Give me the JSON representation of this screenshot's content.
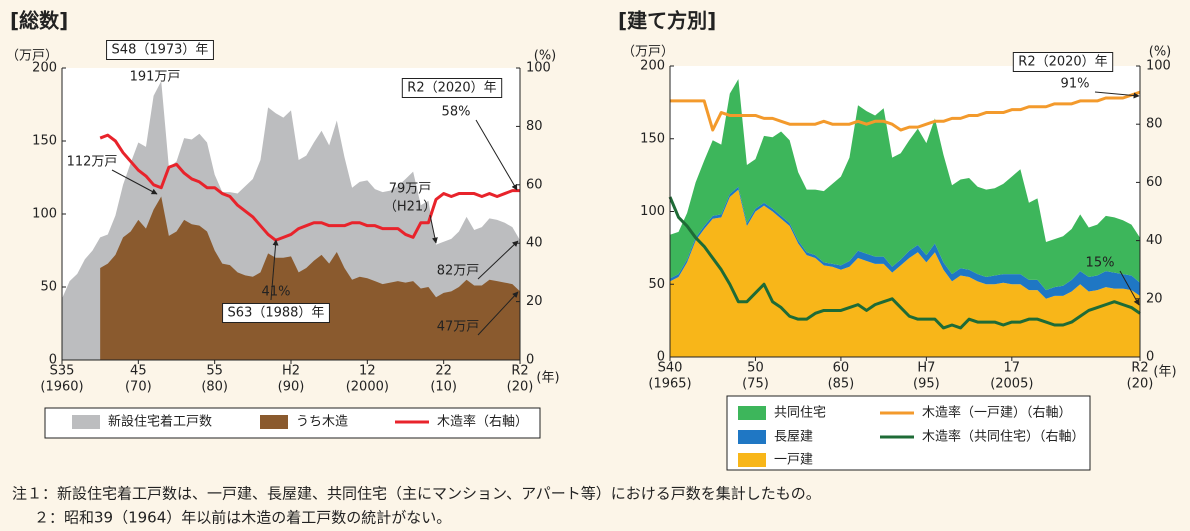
{
  "chart_data": [
    {
      "type": "combo",
      "title": "[総数]",
      "y_unit": "（万戸）",
      "y2_unit": "(%)",
      "x_unit": "(年)",
      "xlim": [
        1960,
        2020
      ],
      "ylim": [
        0,
        200
      ],
      "y2lim": [
        0,
        100
      ],
      "xticks": [
        {
          "value": 1960,
          "label": "S35",
          "sublabel": "(1960)"
        },
        {
          "value": 1970,
          "label": "45",
          "sublabel": "(70)"
        },
        {
          "value": 1980,
          "label": "55",
          "sublabel": "(80)"
        },
        {
          "value": 1990,
          "label": "H2",
          "sublabel": "(90)"
        },
        {
          "value": 2000,
          "label": "12",
          "sublabel": "(2000)"
        },
        {
          "value": 2010,
          "label": "22",
          "sublabel": "(10)"
        },
        {
          "value": 2020,
          "label": "R2",
          "sublabel": "(20)"
        }
      ],
      "yticks": [
        0,
        50,
        100,
        150,
        200
      ],
      "y2ticks": [
        0,
        20,
        40,
        60,
        80,
        100
      ],
      "x": [
        1960,
        1961,
        1962,
        1963,
        1964,
        1965,
        1966,
        1967,
        1968,
        1969,
        1970,
        1971,
        1972,
        1973,
        1974,
        1975,
        1976,
        1977,
        1978,
        1979,
        1980,
        1981,
        1982,
        1983,
        1984,
        1985,
        1986,
        1987,
        1988,
        1989,
        1990,
        1991,
        1992,
        1993,
        1994,
        1995,
        1996,
        1997,
        1998,
        1999,
        2000,
        2001,
        2002,
        2003,
        2004,
        2005,
        2006,
        2007,
        2008,
        2009,
        2010,
        2011,
        2012,
        2013,
        2014,
        2015,
        2016,
        2017,
        2018,
        2019,
        2020
      ],
      "series": [
        {
          "name": "新設住宅着工戸数",
          "kind": "area",
          "color": "#bcbdbf",
          "values": [
            42,
            54,
            59,
            69,
            75,
            84,
            86,
            99,
            120,
            135,
            149,
            146,
            181,
            191,
            132,
            136,
            152,
            151,
            155,
            149,
            127,
            115,
            115,
            114,
            119,
            124,
            137,
            173,
            169,
            166,
            171,
            137,
            140,
            149,
            157,
            147,
            164,
            139,
            118,
            122,
            123,
            117,
            115,
            116,
            119,
            124,
            129,
            106,
            109,
            79,
            81,
            83,
            88,
            98,
            89,
            91,
            97,
            96,
            94,
            91,
            82
          ]
        },
        {
          "name": "うち木造",
          "kind": "area",
          "color": "#8a5a2e",
          "values": [
            null,
            null,
            null,
            null,
            null,
            63,
            66,
            72,
            84,
            88,
            96,
            90,
            103,
            112,
            85,
            88,
            96,
            93,
            92,
            88,
            75,
            66,
            65,
            60,
            58,
            57,
            60,
            73,
            70,
            70,
            71,
            60,
            63,
            68,
            72,
            66,
            74,
            63,
            55,
            57,
            56,
            54,
            52,
            53,
            54,
            53,
            54,
            49,
            50,
            43,
            46,
            47,
            50,
            55,
            51,
            51,
            55,
            54,
            53,
            52,
            47
          ]
        },
        {
          "name": "木造率（右軸）",
          "kind": "line",
          "axis": "y2",
          "color": "#e8232b",
          "values": [
            null,
            null,
            null,
            null,
            null,
            76,
            77,
            75,
            71,
            68,
            65,
            63,
            60,
            59,
            66,
            67,
            64,
            62,
            61,
            59,
            59,
            57,
            56,
            53,
            51,
            49,
            46,
            43,
            41,
            42,
            43,
            45,
            46,
            47,
            47,
            46,
            46,
            46,
            47,
            47,
            46,
            46,
            45,
            45,
            45,
            43,
            42,
            47,
            47,
            55,
            57,
            56,
            57,
            57,
            57,
            56,
            57,
            56,
            57,
            58,
            58
          ]
        }
      ],
      "annotations": [
        "S48（1973）年",
        "191万戸",
        "112万戸",
        "79万戸",
        "（H21）",
        "41%",
        "S63（1988）年",
        "R2（2020）年",
        "58%",
        "82万戸",
        "47万戸"
      ]
    },
    {
      "type": "stacked-combo",
      "title": "[建て方別]",
      "y_unit": "（万戸）",
      "y2_unit": "(%)",
      "x_unit": "(年)",
      "stacked": true,
      "xlim": [
        1965,
        2020
      ],
      "ylim": [
        0,
        200
      ],
      "y2lim": [
        0,
        100
      ],
      "xticks": [
        {
          "value": 1965,
          "label": "S40",
          "sublabel": "(1965)"
        },
        {
          "value": 1975,
          "label": "50",
          "sublabel": "(75)"
        },
        {
          "value": 1985,
          "label": "60",
          "sublabel": "(85)"
        },
        {
          "value": 1995,
          "label": "H7",
          "sublabel": "(95)"
        },
        {
          "value": 2005,
          "label": "17",
          "sublabel": "(2005)"
        },
        {
          "value": 2020,
          "label": "R2",
          "sublabel": "(20)"
        }
      ],
      "yticks": [
        0,
        50,
        100,
        150,
        200
      ],
      "y2ticks": [
        0,
        20,
        40,
        60,
        80,
        100
      ],
      "x": [
        1965,
        1966,
        1967,
        1968,
        1969,
        1970,
        1971,
        1972,
        1973,
        1974,
        1975,
        1976,
        1977,
        1978,
        1979,
        1980,
        1981,
        1982,
        1983,
        1984,
        1985,
        1986,
        1987,
        1988,
        1989,
        1990,
        1991,
        1992,
        1993,
        1994,
        1995,
        1996,
        1997,
        1998,
        1999,
        2000,
        2001,
        2002,
        2003,
        2004,
        2005,
        2006,
        2007,
        2008,
        2009,
        2010,
        2011,
        2012,
        2013,
        2014,
        2015,
        2016,
        2017,
        2018,
        2019,
        2020
      ],
      "series": [
        {
          "name": "共同住宅",
          "kind": "area",
          "color": "#3db65b",
          "values": [
            30,
            29,
            32,
            38,
            45,
            52,
            48,
            69,
            74,
            40,
            34,
            46,
            49,
            58,
            57,
            47,
            43,
            45,
            49,
            55,
            61,
            71,
            100,
            98,
            97,
            102,
            75,
            73,
            76,
            80,
            77,
            86,
            74,
            61,
            61,
            63,
            60,
            60,
            60,
            62,
            67,
            72,
            53,
            56,
            33,
            33,
            34,
            35,
            39,
            34,
            35,
            38,
            38,
            37,
            35,
            31
          ]
        },
        {
          "name": "長屋建",
          "kind": "area",
          "color": "#1f77c4",
          "values": [
            2,
            2,
            2,
            2,
            2,
            2,
            2,
            2,
            2,
            2,
            2,
            2,
            2,
            2,
            2,
            2,
            2,
            2,
            2,
            2,
            3,
            4,
            5,
            5,
            5,
            5,
            4,
            4,
            5,
            5,
            5,
            6,
            5,
            5,
            5,
            5,
            5,
            5,
            6,
            6,
            7,
            7,
            7,
            7,
            6,
            6,
            7,
            8,
            9,
            10,
            10,
            11,
            11,
            10,
            10,
            9
          ]
        },
        {
          "name": "一戸建",
          "kind": "area",
          "color": "#f8b619",
          "values": [
            52,
            55,
            65,
            80,
            88,
            95,
            96,
            110,
            115,
            90,
            100,
            104,
            100,
            95,
            90,
            78,
            70,
            68,
            63,
            62,
            60,
            62,
            68,
            66,
            64,
            64,
            58,
            63,
            68,
            72,
            65,
            72,
            60,
            52,
            56,
            55,
            52,
            50,
            50,
            51,
            50,
            50,
            46,
            46,
            40,
            42,
            42,
            45,
            50,
            45,
            46,
            48,
            47,
            47,
            46,
            42
          ]
        },
        {
          "name": "木造率（一戸建）（右軸）",
          "kind": "line",
          "axis": "y2",
          "color": "#f39a2c",
          "values": [
            88,
            88,
            88,
            88,
            88,
            78,
            84,
            83,
            83,
            83,
            83,
            82,
            82,
            81,
            80,
            80,
            80,
            80,
            81,
            80,
            80,
            80,
            81,
            80,
            81,
            81,
            80,
            78,
            79,
            79,
            80,
            81,
            81,
            82,
            82,
            83,
            83,
            84,
            84,
            84,
            85,
            85,
            86,
            86,
            86,
            87,
            87,
            87,
            88,
            88,
            88,
            89,
            89,
            89,
            90,
            91
          ]
        },
        {
          "name": "木造率（共同住宅）（右軸）",
          "kind": "line",
          "axis": "y2",
          "color": "#1e6b36",
          "values": [
            55,
            48,
            45,
            41,
            38,
            34,
            30,
            25,
            19,
            19,
            22,
            25,
            19,
            17,
            14,
            13,
            13,
            15,
            16,
            16,
            16,
            17,
            18,
            16,
            18,
            19,
            20,
            17,
            14,
            13,
            13,
            13,
            10,
            11,
            10,
            13,
            12,
            12,
            12,
            11,
            12,
            12,
            13,
            13,
            12,
            11,
            11,
            12,
            14,
            16,
            17,
            18,
            19,
            18,
            17,
            15
          ]
        }
      ],
      "annotations": [
        "R2（2020）年",
        "91%",
        "15%"
      ]
    }
  ],
  "notes": [
    "注１：新設住宅着工戸数は、一戸建、長屋建、共同住宅（主にマンション、アパート等）における戸数を集計したもの。",
    "２：昭和39（1964）年以前は木造の着工戸数の統計がない。"
  ]
}
